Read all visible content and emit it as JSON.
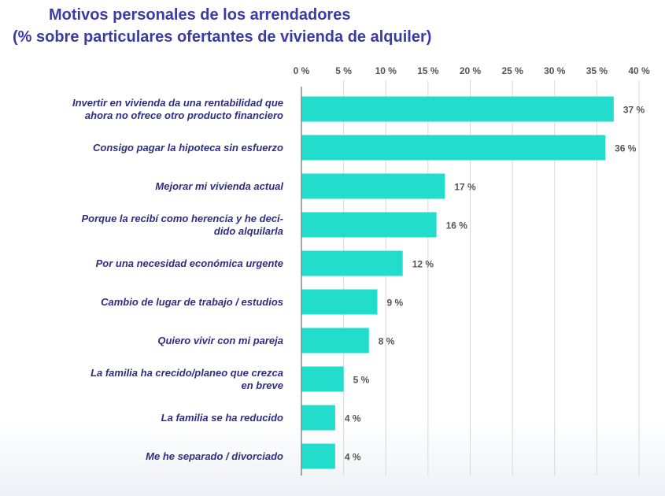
{
  "chart_data": {
    "type": "bar",
    "orientation": "horizontal",
    "title": "Motivos personales de los arrendadores",
    "subtitle": "(% sobre particulares ofertantes de vivienda de alquiler)",
    "categories": [
      "Invertir en vivienda da una rentabilidad que\nahora no ofrece otro producto financiero",
      "Consigo pagar la hipoteca sin esfuerzo",
      "Mejorar mi vivienda actual",
      "Porque la recibí como herencia y he deci-\ndido alquilarla",
      "Por una necesidad económica urgente",
      "Cambio de lugar de trabajo / estudios",
      "Quiero vivir con mi pareja",
      "La familia ha crecido/planeo que crezca\nen breve",
      "La familia se ha reducido",
      "Me he separado / divorciado"
    ],
    "values": [
      37,
      36,
      17,
      16,
      12,
      9,
      8,
      5,
      4,
      4
    ],
    "value_labels": [
      "37 %",
      "36 %",
      "17 %",
      "16 %",
      "12 %",
      "9 %",
      "8 %",
      "5 %",
      "4 %",
      "4 %"
    ],
    "color": "#22ddcc",
    "xlim": [
      0,
      40
    ],
    "xticks": [
      {
        "value": 0,
        "label": "0 %"
      },
      {
        "value": 5,
        "label": "5 %"
      },
      {
        "value": 10,
        "label": "10 %"
      },
      {
        "value": 15,
        "label": "15 %"
      },
      {
        "value": 20,
        "label": "20 %"
      },
      {
        "value": 25,
        "label": "25 %"
      },
      {
        "value": 30,
        "label": "30 %"
      },
      {
        "value": 35,
        "label": "35 %"
      },
      {
        "value": 40,
        "label": "40 %"
      }
    ],
    "grid": true
  }
}
